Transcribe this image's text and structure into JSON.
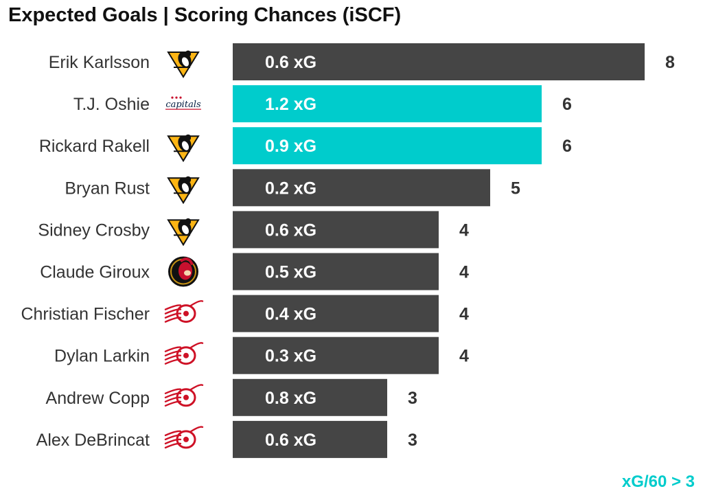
{
  "title": "Expected Goals | Scoring Chances (iSCF)",
  "footnote": "xG/60 > 3",
  "colors": {
    "default_bar": "#454545",
    "highlight_bar": "#00cccc",
    "label_text": "#333333",
    "value_text": "#333333",
    "bar_text": "#ffffff",
    "footnote": "#00cccc"
  },
  "chart_data": {
    "type": "bar",
    "orientation": "horizontal",
    "xlim": [
      0,
      8
    ],
    "grid": false,
    "categories": [
      "Erik Karlsson",
      "T.J. Oshie",
      "Rickard Rakell",
      "Bryan Rust",
      "Sidney Crosby",
      "Claude Giroux",
      "Christian Fischer",
      "Dylan Larkin",
      "Andrew Copp",
      "Alex DeBrincat"
    ],
    "series": [
      {
        "values": [
          8,
          6,
          6,
          5,
          4,
          4,
          4,
          4,
          3,
          3
        ]
      }
    ],
    "bar_labels": [
      "0.6 xG",
      "1.2 xG",
      "0.9 xG",
      "0.2 xG",
      "0.6 xG",
      "0.5 xG",
      "0.4 xG",
      "0.3 xG",
      "0.8 xG",
      "0.6 xG"
    ],
    "highlighted": [
      false,
      true,
      true,
      false,
      false,
      false,
      false,
      false,
      false,
      false
    ],
    "team_logos": [
      "penguins-logo",
      "capitals-logo",
      "penguins-logo",
      "penguins-logo",
      "penguins-logo",
      "senators-logo",
      "red-wings-logo",
      "red-wings-logo",
      "red-wings-logo",
      "red-wings-logo"
    ]
  }
}
